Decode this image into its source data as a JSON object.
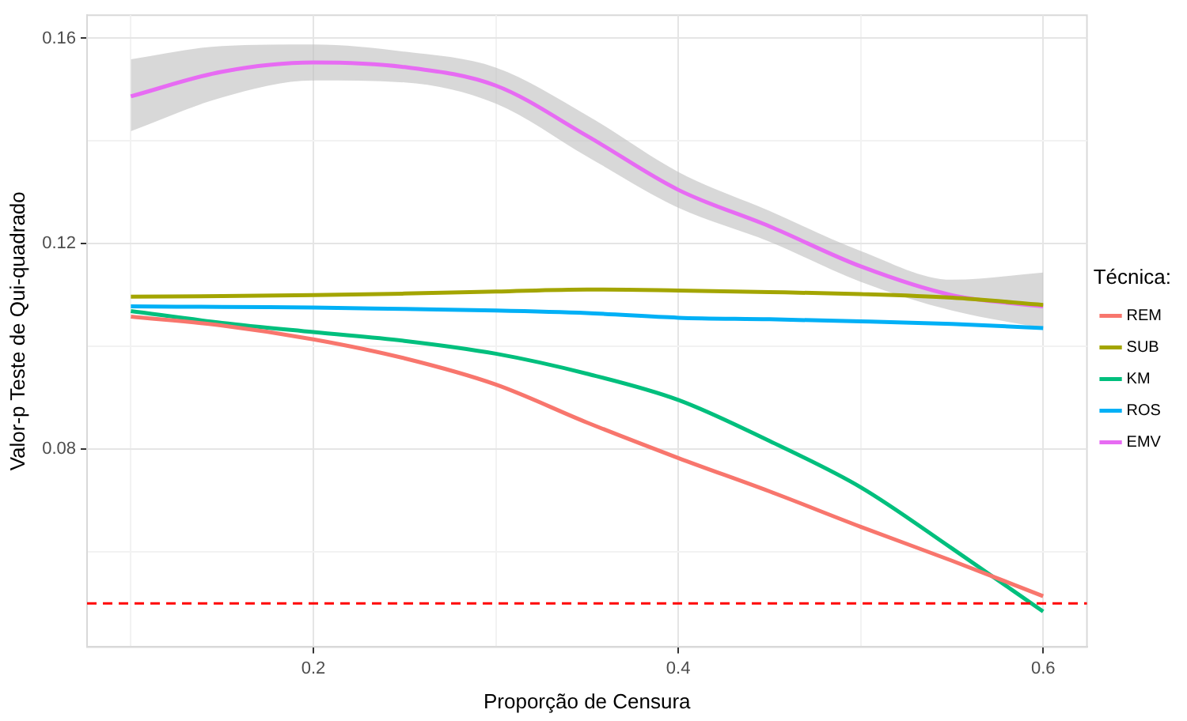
{
  "chart_data": {
    "type": "line",
    "xlabel": "Proporção de Censura",
    "ylabel": "Valor-p Teste de Qui-quadrado",
    "legend_title": "Técnica:",
    "legend": "right",
    "grid": true,
    "marker": "none",
    "line_style": "solid",
    "x": [
      0.1,
      0.15,
      0.2,
      0.25,
      0.3,
      0.35,
      0.4,
      0.45,
      0.5,
      0.55,
      0.6
    ],
    "xlim": [
      0.076,
      0.624
    ],
    "xticks": [
      {
        "value": 0.1,
        "label": null
      },
      0.2,
      {
        "value": 0.3,
        "label": null
      },
      0.4,
      {
        "value": 0.5,
        "label": null
      },
      0.6
    ],
    "ylim": [
      0.0415,
      0.1645
    ],
    "yticks": [
      {
        "value": 0.06,
        "label": null
      },
      0.08,
      {
        "value": 0.1,
        "label": null
      },
      0.12,
      {
        "value": 0.14,
        "label": null
      },
      0.16
    ],
    "series": [
      {
        "name": "REM",
        "color": "#f8766d",
        "values": [
          0.1058,
          0.1041,
          0.1014,
          0.0977,
          0.0926,
          0.0852,
          0.0783,
          0.0718,
          0.0649,
          0.0583,
          0.0514
        ]
      },
      {
        "name": "SUB",
        "color": "#a3a500",
        "values": [
          0.1097,
          0.1098,
          0.11,
          0.1103,
          0.1107,
          0.1111,
          0.1109,
          0.1106,
          0.1102,
          0.1095,
          0.1081
        ]
      },
      {
        "name": "KM",
        "color": "#00bf7d",
        "values": [
          0.1069,
          0.1046,
          0.1028,
          0.1011,
          0.0986,
          0.0947,
          0.0896,
          0.0816,
          0.0726,
          0.0607,
          0.0484
        ]
      },
      {
        "name": "ROS",
        "color": "#00b0f6",
        "values": [
          0.1078,
          0.1077,
          0.1076,
          0.1073,
          0.107,
          0.1065,
          0.1056,
          0.1053,
          0.1049,
          0.1044,
          0.1036
        ]
      },
      {
        "name": "EMV",
        "color": "#e76bf3",
        "values": [
          0.1487,
          0.1535,
          0.1553,
          0.1544,
          0.1508,
          0.141,
          0.1305,
          0.1234,
          0.1156,
          0.11,
          0.1078
        ],
        "lower": [
          0.1419,
          0.1485,
          0.1518,
          0.1514,
          0.1473,
          0.137,
          0.127,
          0.1204,
          0.1126,
          0.107,
          0.1036
        ],
        "upper": [
          0.1559,
          0.1585,
          0.1588,
          0.1574,
          0.1543,
          0.145,
          0.134,
          0.1264,
          0.1186,
          0.113,
          0.1144
        ]
      }
    ],
    "ref_lines": [
      {
        "axis": "y",
        "value": 0.05,
        "color": "#ff0000",
        "line_style": "dashed"
      }
    ]
  }
}
